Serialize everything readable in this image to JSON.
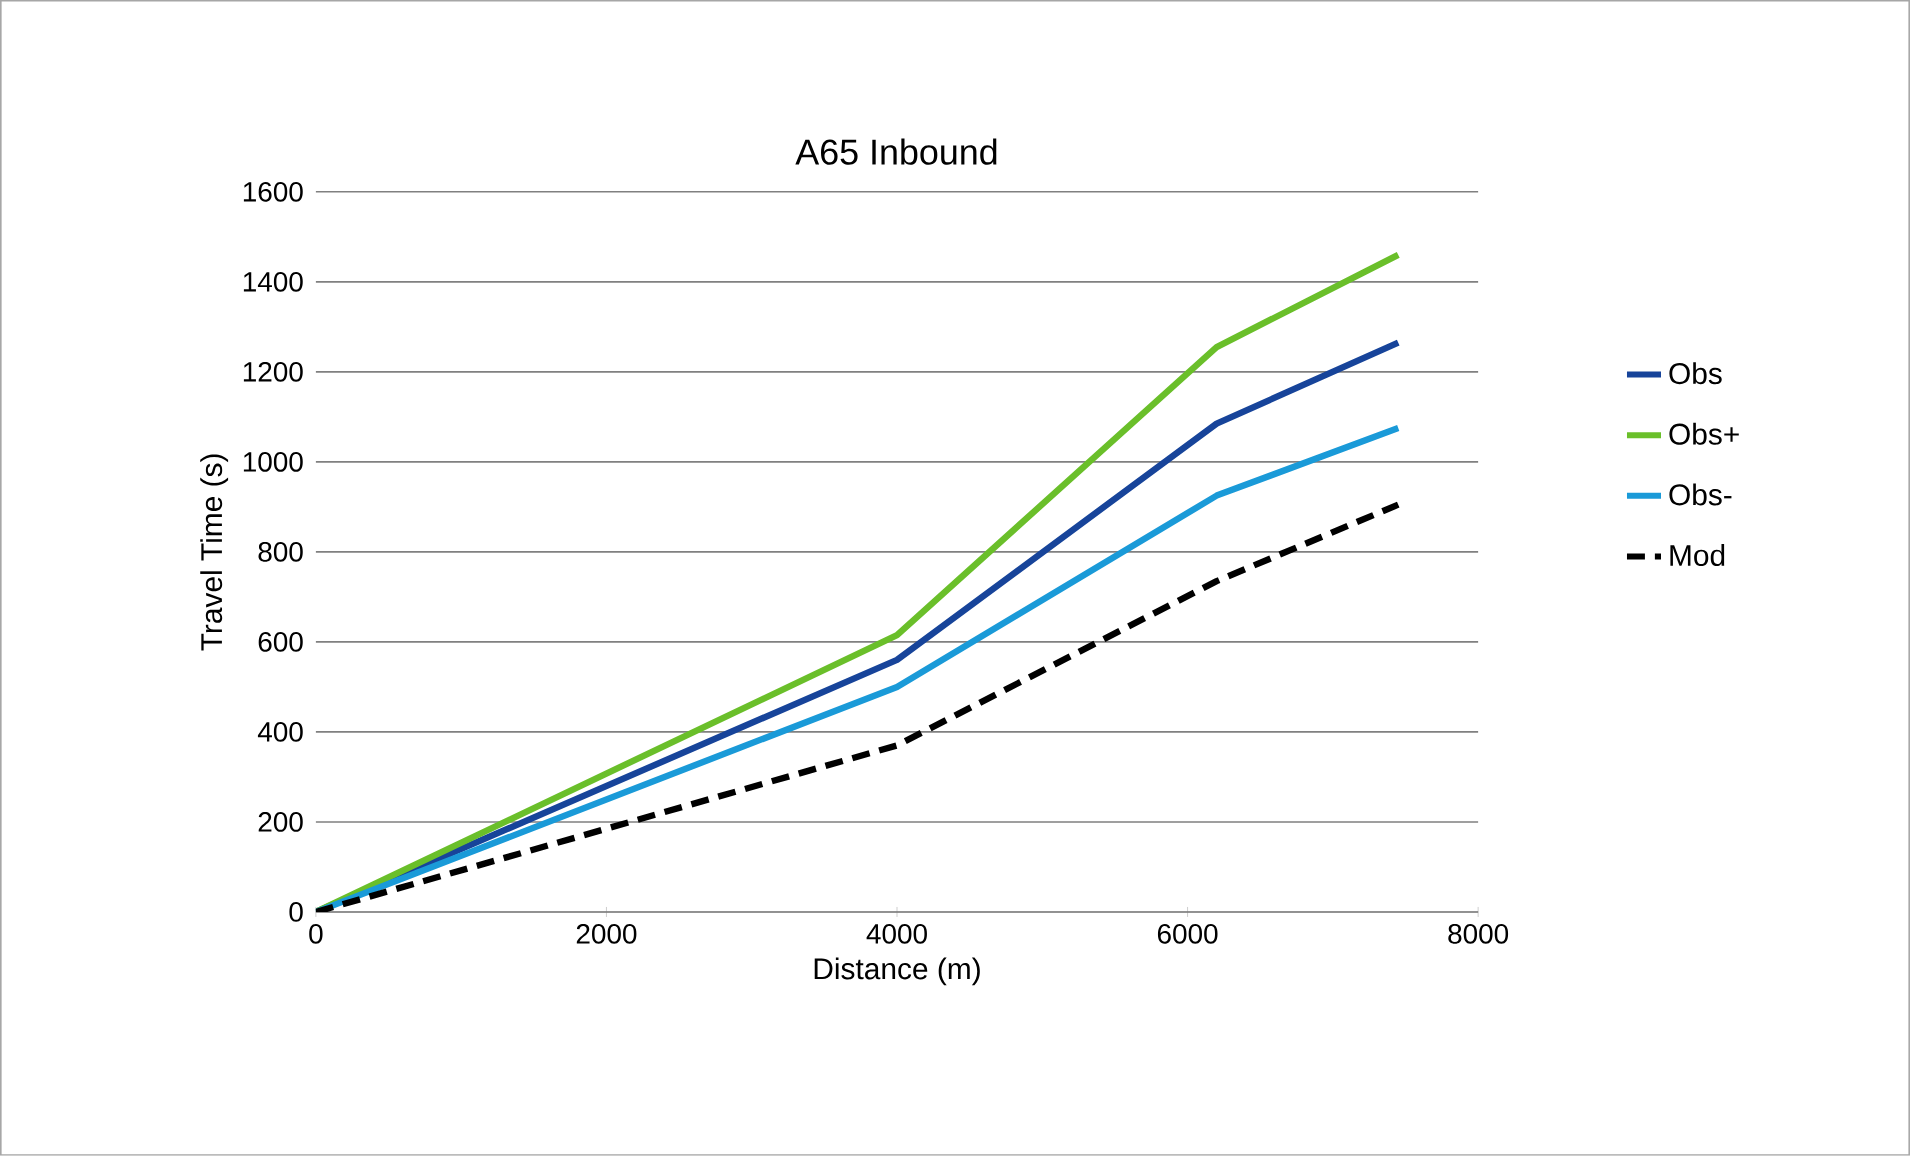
{
  "chart_data": {
    "type": "line",
    "title": "A65 Inbound",
    "xlabel": "Distance (m)",
    "ylabel": "Travel Time (s)",
    "xlim": [
      0,
      8000
    ],
    "xticks": [
      0,
      2000,
      4000,
      6000,
      8000
    ],
    "ylim": [
      0,
      1600
    ],
    "yticks": [
      0,
      200,
      400,
      600,
      800,
      1000,
      1200,
      1400,
      1600
    ],
    "grid": "y",
    "legend": "right",
    "marker": "none",
    "series": [
      {
        "name": "Obs",
        "color": "#17449a",
        "x": [
          0,
          4000,
          6200,
          7450
        ],
        "values": [
          0,
          560,
          1085,
          1265
        ]
      },
      {
        "name": "Obs+",
        "color": "#6abf2a",
        "x": [
          0,
          4000,
          6200,
          7450
        ],
        "values": [
          0,
          615,
          1255,
          1460
        ]
      },
      {
        "name": "Obs-",
        "color": "#1a9ad8",
        "x": [
          0,
          4000,
          6200,
          7450
        ],
        "values": [
          0,
          500,
          925,
          1075
        ]
      },
      {
        "name": "Mod",
        "color": "#000000",
        "line_style": "dashed",
        "x": [
          0,
          4000,
          6200,
          7450
        ],
        "values": [
          0,
          370,
          735,
          905
        ]
      }
    ]
  }
}
